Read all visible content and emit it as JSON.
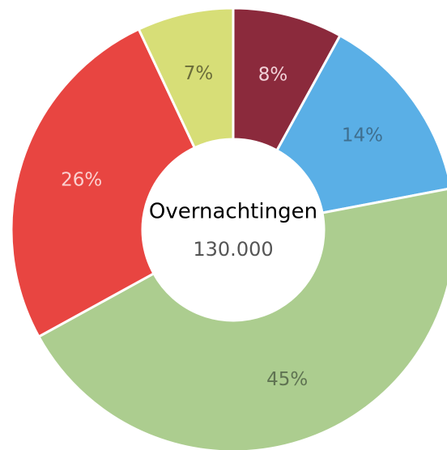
{
  "chart_data": {
    "type": "donut",
    "categories": [
      null,
      null,
      null,
      null,
      null
    ],
    "values": [
      8,
      14,
      45,
      26,
      7
    ],
    "value_labels": [
      "8%",
      "14%",
      "45%",
      "26%",
      "7%"
    ],
    "colors": [
      "#8b2a3c",
      "#5aafe6",
      "#accd8f",
      "#e84541",
      "#d7de77"
    ],
    "label_colors": [
      "#f2d2d8",
      "#3f6f8f",
      "#5f7352",
      "#fbd0cf",
      "#6b6d3a"
    ],
    "center_title": "Overnachtingen",
    "center_value": {
      "value": 130000,
      "label": "130.000"
    }
  }
}
